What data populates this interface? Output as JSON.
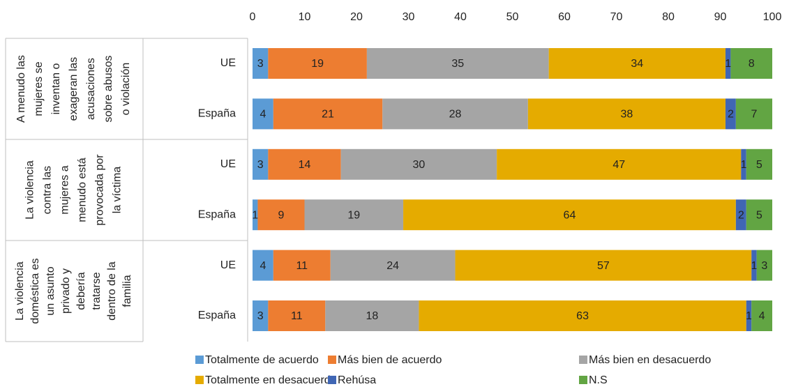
{
  "chart_data": {
    "type": "stacked-bar-horizontal",
    "categories": [
      "UE",
      "España",
      "UE",
      "España",
      "UE",
      "España"
    ],
    "groups": [
      {
        "label_lines": [
          "A menudo las",
          "mujeres se",
          "inventan o",
          "exageran las",
          "acusaciones",
          "sobre abusos",
          "o violación"
        ]
      },
      {
        "label_lines": [
          "La violencia",
          "contra las",
          "mujeres a",
          "menudo está",
          "provocada por",
          "la víctima"
        ]
      },
      {
        "label_lines": [
          "La violencia",
          "doméstica es",
          "un asunto",
          "privado y",
          "debería",
          "tratarse",
          "dentro de la",
          "familia"
        ]
      }
    ],
    "series": [
      {
        "name": "Totalmente de acuerdo",
        "color": "#5b9bd5",
        "values": [
          3,
          4,
          3,
          1,
          4,
          3
        ]
      },
      {
        "name": "Más bien de acuerdo",
        "color": "#ed7d31",
        "values": [
          19,
          21,
          14,
          9,
          11,
          11
        ]
      },
      {
        "name": "Más bien en desacuerdo",
        "color": "#a5a5a5",
        "values": [
          35,
          28,
          30,
          19,
          24,
          18
        ]
      },
      {
        "name": "Totalmente en desacuerdo",
        "color": "#e5ab00",
        "values": [
          34,
          38,
          47,
          64,
          57,
          63
        ]
      },
      {
        "name": "Rehúsa",
        "color": "#4066b4",
        "values": [
          1,
          2,
          1,
          2,
          1,
          1
        ]
      },
      {
        "name": "N.S",
        "color": "#62a543",
        "values": [
          8,
          7,
          5,
          5,
          3,
          4
        ]
      }
    ],
    "xlim": [
      0,
      100
    ],
    "xticks": [
      0,
      10,
      20,
      30,
      40,
      50,
      60,
      70,
      80,
      90,
      100
    ]
  }
}
